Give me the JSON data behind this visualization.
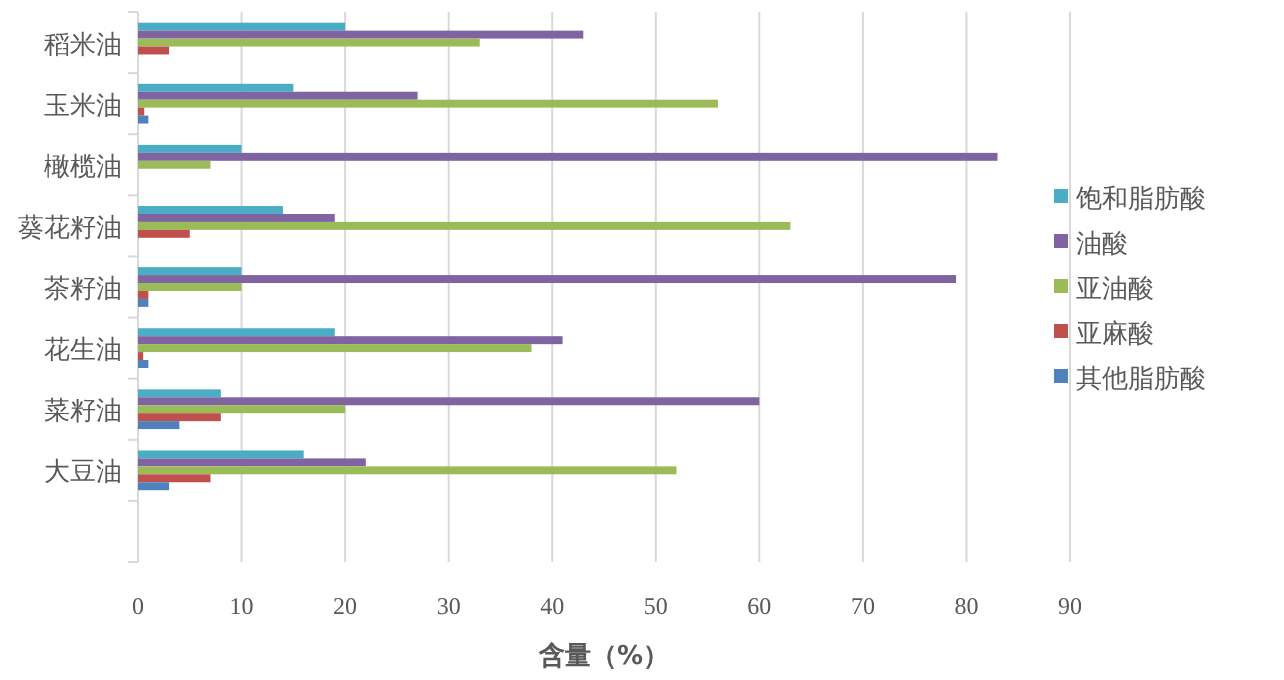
{
  "chart_data": {
    "type": "bar",
    "orientation": "horizontal",
    "xlabel": "含量（%）",
    "categories": [
      "稻米油",
      "玉米油",
      "橄榄油",
      "葵花籽油",
      "茶籽油",
      "花生油",
      "菜籽油",
      "大豆油",
      null
    ],
    "series": [
      {
        "name": "饱和脂肪酸",
        "color": "#4bacc6",
        "values": [
          20,
          15,
          10,
          14,
          10,
          19,
          8,
          16,
          null
        ]
      },
      {
        "name": "油酸",
        "color": "#8064a2",
        "values": [
          43,
          27,
          83,
          19,
          79,
          41,
          60,
          22,
          null
        ]
      },
      {
        "name": "亚油酸",
        "color": "#9bbb59",
        "values": [
          33,
          56,
          7,
          63,
          10,
          38,
          20,
          52,
          null
        ]
      },
      {
        "name": "亚麻酸",
        "color": "#c0504d",
        "values": [
          3,
          0.6,
          null,
          5,
          1,
          0.5,
          8,
          7,
          null
        ]
      },
      {
        "name": "其他脂肪酸",
        "color": "#4f81bd",
        "values": [
          null,
          1,
          null,
          null,
          1,
          1,
          4,
          3,
          null
        ]
      }
    ],
    "xlim": [
      0,
      90
    ],
    "xticks": [
      0,
      10,
      20,
      30,
      40,
      50,
      60,
      70,
      80,
      90
    ],
    "grid": "x",
    "legend": "right"
  }
}
